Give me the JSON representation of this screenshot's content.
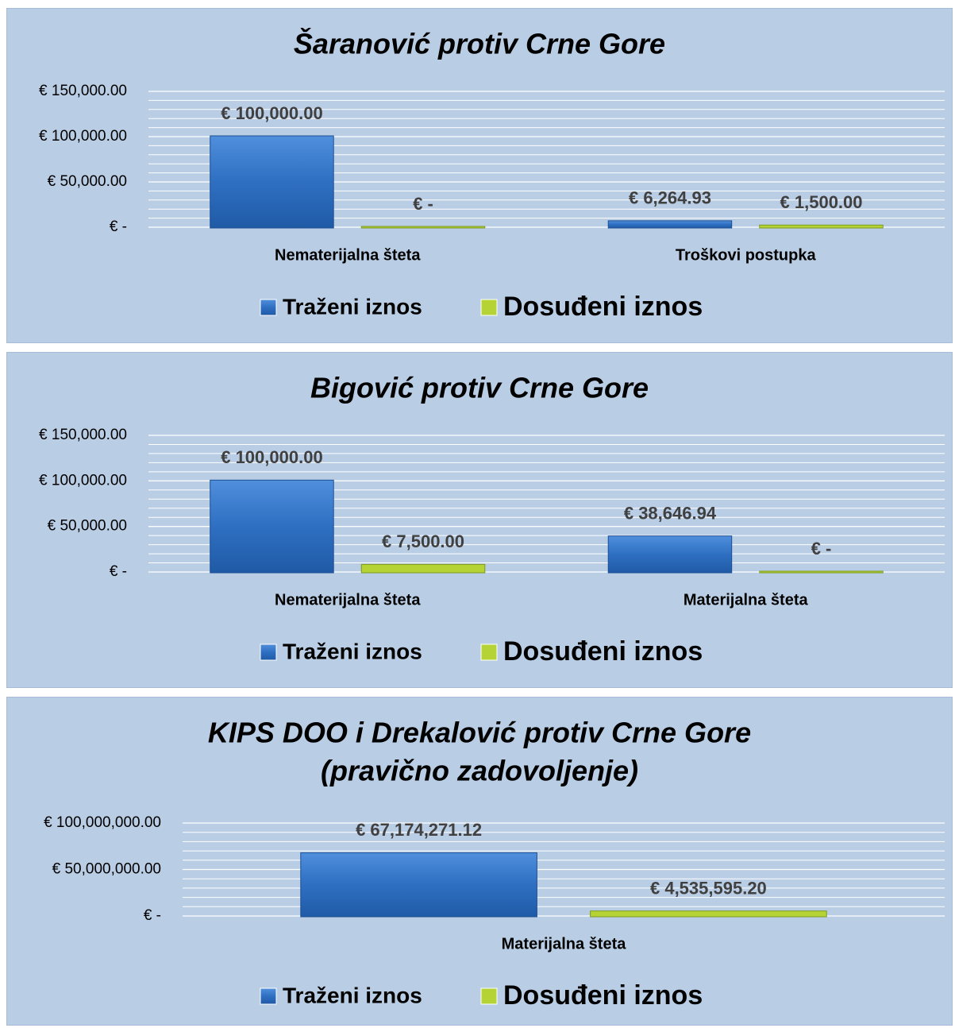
{
  "chart_data": [
    {
      "type": "bar",
      "title": [
        "Šaranović protiv Crne Gore"
      ],
      "categories": [
        "Nematerijalna šteta",
        "Troškovi postupka"
      ],
      "series": [
        {
          "name": "Traženi iznos",
          "color": "#2f6fc2",
          "values": [
            100000,
            6264.93
          ],
          "value_labels": [
            "€ 100,000.00",
            "€ 6,264.93"
          ]
        },
        {
          "name": "Dosuđeni iznos",
          "color": "#b5d334",
          "values": [
            0,
            1500
          ],
          "value_labels": [
            "€ -",
            "€ 1,500.00"
          ]
        }
      ],
      "ylim": [
        0,
        150000
      ],
      "yticks": [
        {
          "value": 0,
          "label": "€ -"
        },
        {
          "value": 50000,
          "label": "€ 50,000.00"
        },
        {
          "value": 100000,
          "label": "€ 100,000.00"
        },
        {
          "value": 150000,
          "label": "€ 150,000.00"
        }
      ],
      "grid": true,
      "minor_grid_per_major": 5,
      "legend": "bottom"
    },
    {
      "type": "bar",
      "title": [
        "Bigović protiv Crne Gore"
      ],
      "categories": [
        "Nematerijalna šteta",
        "Materijalna šteta"
      ],
      "series": [
        {
          "name": "Traženi iznos",
          "color": "#2f6fc2",
          "values": [
            100000,
            38646.94
          ],
          "value_labels": [
            "€ 100,000.00",
            "€ 38,646.94"
          ]
        },
        {
          "name": "Dosuđeni iznos",
          "color": "#b5d334",
          "values": [
            7500,
            0
          ],
          "value_labels": [
            "€ 7,500.00",
            "€ -"
          ]
        }
      ],
      "ylim": [
        0,
        150000
      ],
      "yticks": [
        {
          "value": 0,
          "label": "€ -"
        },
        {
          "value": 50000,
          "label": "€ 50,000.00"
        },
        {
          "value": 100000,
          "label": "€ 100,000.00"
        },
        {
          "value": 150000,
          "label": "€ 150,000.00"
        }
      ],
      "grid": true,
      "minor_grid_per_major": 5,
      "legend": "bottom"
    },
    {
      "type": "bar",
      "title": [
        "KIPS DOO i Drekalović protiv Crne Gore",
        "(pravično zadovoljenje)"
      ],
      "categories": [
        "Materijalna šteta"
      ],
      "series": [
        {
          "name": "Traženi iznos",
          "color": "#2f6fc2",
          "values": [
            67174271.12
          ],
          "value_labels": [
            "€ 67,174,271.12"
          ]
        },
        {
          "name": "Dosuđeni iznos",
          "color": "#b5d334",
          "values": [
            4535595.2
          ],
          "value_labels": [
            "€ 4,535,595.20"
          ]
        }
      ],
      "ylim": [
        0,
        100000000
      ],
      "yticks": [
        {
          "value": 0,
          "label": "€ -"
        },
        {
          "value": 50000000,
          "label": "€ 50,000,000.00"
        },
        {
          "value": 100000000,
          "label": "€ 100,000,000.00"
        }
      ],
      "grid": true,
      "minor_grid_per_major": 5,
      "legend": "bottom"
    }
  ]
}
